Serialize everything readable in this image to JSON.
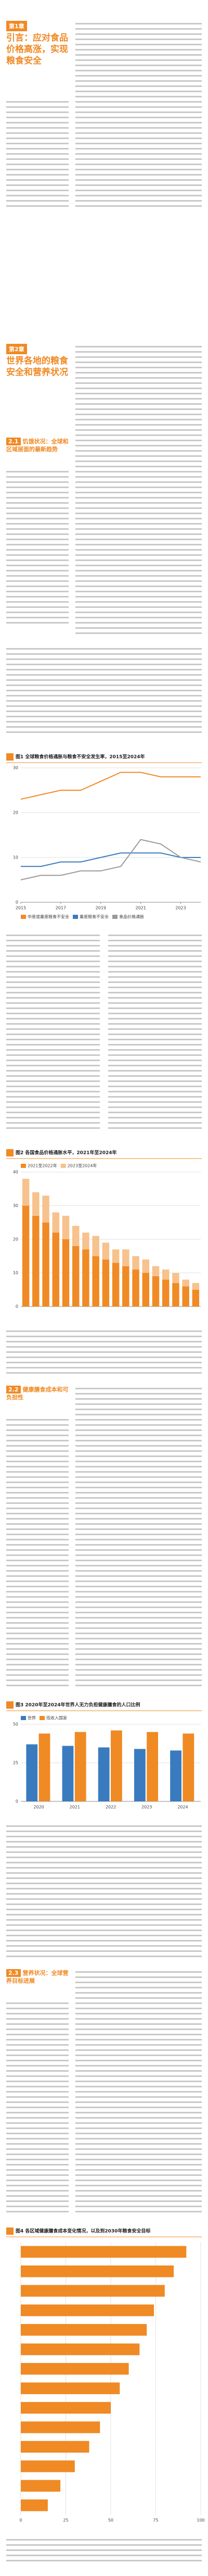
{
  "chapter1": {
    "label": "第1章",
    "title": "引言：应对食品价格高涨，实现粮食安全"
  },
  "chapter2": {
    "label": "第2章",
    "title": "世界各地的粮食安全和营养状况"
  },
  "sections": [
    {
      "label": "2.1",
      "title": "饥饿状况：全球和区域层面的最新趋势"
    },
    {
      "label": "2.2",
      "title": "健康膳食成本和可负担性"
    },
    {
      "label": "2.3",
      "title": "营养状况：全球营养目标进展"
    }
  ],
  "chart_data": [
    {
      "type": "line",
      "title": "图1 全球粮食价格通胀与粮食不安全发生率，2015至2024年",
      "x": [
        2015,
        2016,
        2017,
        2018,
        2019,
        2020,
        2021,
        2022,
        2023,
        2024
      ],
      "xlim": [
        2015,
        2024
      ],
      "xticks": [
        2015,
        2017,
        2019,
        2021,
        2023
      ],
      "ylim": [
        0,
        30
      ],
      "yticks": [
        0,
        10,
        20,
        30
      ],
      "grid": true,
      "legend": "bottom",
      "series": [
        {
          "name": "中度或重度粮食不安全",
          "color": "#f08a24",
          "values": [
            23,
            24,
            25,
            25,
            27,
            29,
            29,
            28,
            28,
            28
          ]
        },
        {
          "name": "重度粮食不安全",
          "color": "#3a7bbf",
          "values": [
            8,
            8,
            9,
            9,
            10,
            11,
            11,
            11,
            10,
            10
          ]
        },
        {
          "name": "食品价格通胀",
          "color": "#9a9a9a",
          "values": [
            5,
            6,
            6,
            7,
            7,
            8,
            14,
            13,
            10,
            9
          ]
        }
      ]
    },
    {
      "type": "stacked",
      "title": "图2 各国食品价格通胀水平，2021年至2024年",
      "categories": [
        null,
        null,
        null,
        null,
        null,
        null,
        null,
        null,
        null,
        null,
        null,
        null,
        null,
        null,
        null,
        null,
        null,
        null
      ],
      "ylim": [
        0,
        40
      ],
      "yticks": [
        0,
        10,
        20,
        30,
        40
      ],
      "grid": true,
      "legend": "top",
      "series": [
        {
          "name": "2021至2022年",
          "color": "#f08a24",
          "values": [
            30,
            27,
            25,
            22,
            20,
            18,
            17,
            15,
            14,
            13,
            12,
            11,
            10,
            9,
            8,
            7,
            6,
            5
          ]
        },
        {
          "name": "2023至2024年",
          "color": "#f7c28d",
          "values": [
            8,
            7,
            8,
            6,
            7,
            6,
            5,
            6,
            5,
            4,
            5,
            4,
            4,
            3,
            3,
            3,
            2,
            2
          ]
        }
      ]
    },
    {
      "type": "bar",
      "title": "图3 2020年至2024年世界人无力负担健康膳食的人口比例",
      "categories": [
        "2020",
        "2021",
        "2022",
        "2023",
        "2024"
      ],
      "ylim": [
        0,
        50
      ],
      "yticks": [
        0,
        25,
        50
      ],
      "grid": true,
      "legend": "top",
      "series": [
        {
          "name": "世界",
          "color": "#3a7bbf",
          "values": [
            37,
            36,
            35,
            34,
            33
          ]
        },
        {
          "name": "低收入国家",
          "color": "#f08a24",
          "values": [
            44,
            45,
            46,
            45,
            44
          ]
        }
      ]
    },
    {
      "type": "hbar",
      "title": "图4 各区域健康膳食成本变化情况，以及到2030年粮食安全目标",
      "categories": [
        null,
        null,
        null,
        null,
        null,
        null,
        null,
        null,
        null,
        null,
        null,
        null,
        null,
        null
      ],
      "xlim": [
        0,
        100
      ],
      "xticks": [
        0,
        25,
        50,
        75,
        100
      ],
      "grid": true,
      "color": "#f08a24",
      "values": [
        92,
        85,
        80,
        74,
        70,
        66,
        60,
        55,
        50,
        44,
        38,
        30,
        22,
        15
      ]
    }
  ]
}
